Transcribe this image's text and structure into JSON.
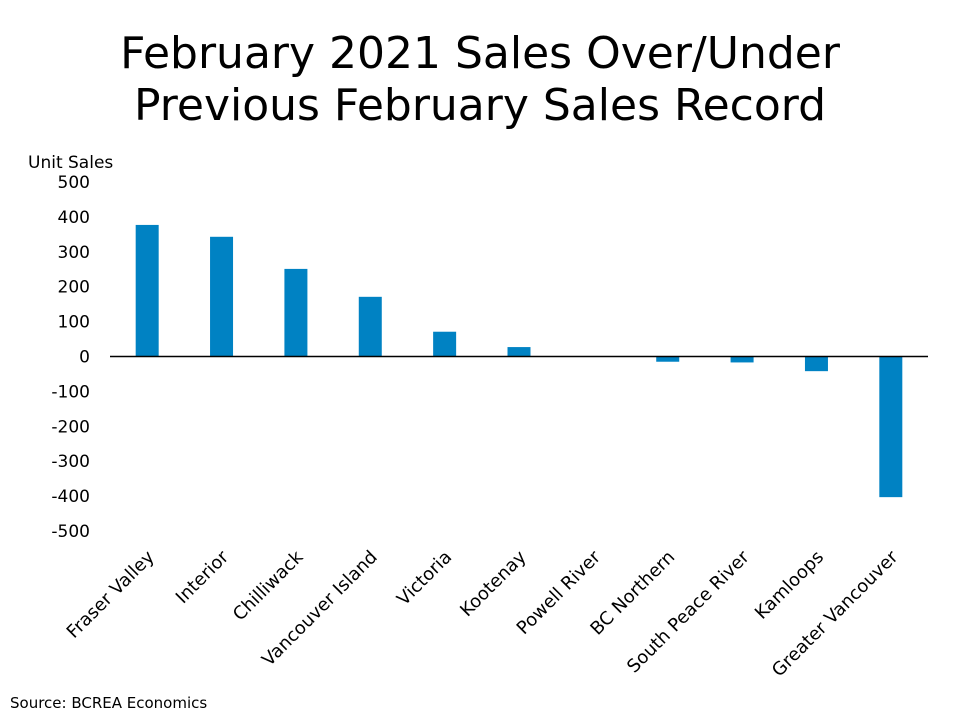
{
  "chart_data": {
    "type": "bar",
    "title_lines": [
      "February 2021 Sales Over/Under",
      "Previous February Sales Record"
    ],
    "ylabel": "Unit Sales",
    "xlabel": "",
    "categories": [
      "Fraser Valley",
      "Interior",
      "Chilliwack",
      "Vancouver Island",
      "Victoria",
      "Kootenay",
      "Powell River",
      "BC Northern",
      "South Peace River",
      "Kamloops",
      "Greater Vancouver"
    ],
    "values": [
      377,
      343,
      251,
      171,
      71,
      27,
      0,
      -15,
      -17,
      -42,
      -403
    ],
    "ylim": [
      -500,
      500
    ],
    "yticks": [
      "500",
      "400",
      "300",
      "200",
      "100",
      "0",
      "-100",
      "-200",
      "-300",
      "-400",
      "-500"
    ],
    "bar_color": "#0082C3",
    "grid": false,
    "legend": "none"
  },
  "source": "Source: BCREA Economics"
}
